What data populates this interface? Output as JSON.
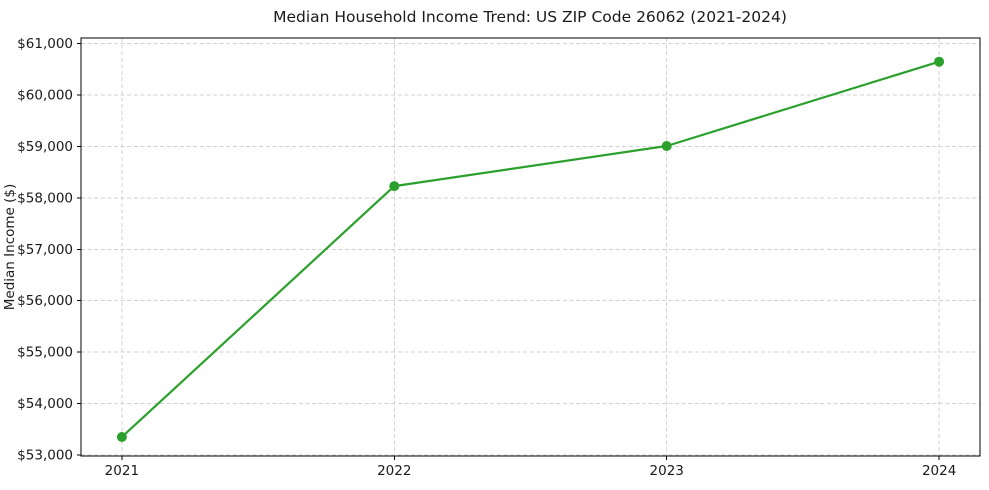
{
  "chart_data": {
    "type": "line",
    "title": "Median Household Income Trend: US ZIP Code 26062 (2021-2024)",
    "xlabel": "",
    "ylabel": "Median Income ($)",
    "categories": [
      "2021",
      "2022",
      "2023",
      "2024"
    ],
    "x": [
      2021,
      2022,
      2023,
      2024
    ],
    "series": [
      {
        "name": "Median Household Income",
        "values": [
          53350,
          58230,
          59010,
          60650
        ],
        "color": "#2ca02c",
        "marker": "circle",
        "marker_radius": 5,
        "line_width": 2.2
      }
    ],
    "yticks": [
      53000,
      54000,
      55000,
      56000,
      57000,
      58000,
      59000,
      60000,
      61000
    ],
    "ytick_labels": [
      "$53,000",
      "$54,000",
      "$55,000",
      "$56,000",
      "$57,000",
      "$58,000",
      "$59,000",
      "$60,000",
      "$61,000"
    ],
    "xtick_labels": [
      "2021",
      "2022",
      "2023",
      "2024"
    ],
    "ylim": [
      52980,
      61110
    ],
    "xlim": [
      2020.85,
      2024.15
    ],
    "grid": true,
    "grid_style": "dashed",
    "grid_color": "#d2d2d2",
    "spine_color": "#000000",
    "text_color": "#1a1a1a",
    "background_color": "#ffffff",
    "legend": "none"
  }
}
